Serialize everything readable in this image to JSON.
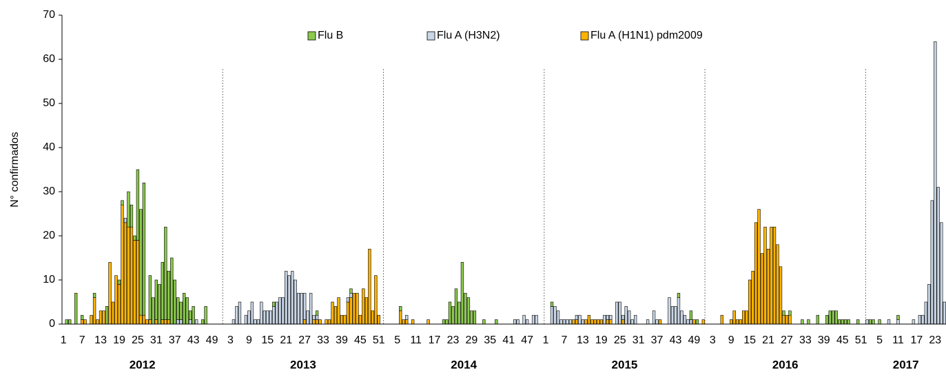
{
  "chart_data": {
    "type": "stacked-bar",
    "y_label": "N° confirmados",
    "ylim": [
      0,
      70
    ],
    "yticks": [
      0,
      10,
      20,
      30,
      40,
      50,
      60,
      70
    ],
    "legend": "top-center",
    "year_labels": [
      "2012",
      "2013",
      "2014",
      "2015",
      "2016",
      "2017"
    ],
    "categories": [
      "1",
      null,
      null,
      null,
      null,
      null,
      "7",
      null,
      null,
      null,
      null,
      null,
      "13",
      null,
      null,
      null,
      null,
      null,
      "19",
      null,
      null,
      null,
      null,
      null,
      "25",
      null,
      null,
      null,
      null,
      null,
      "31",
      null,
      null,
      null,
      null,
      null,
      "37",
      null,
      null,
      null,
      null,
      null,
      "43",
      null,
      null,
      null,
      null,
      null,
      "49",
      null,
      null,
      null,
      null,
      null,
      "3",
      null,
      null,
      null,
      null,
      null,
      "9",
      null,
      null,
      null,
      null,
      null,
      "15",
      null,
      null,
      null,
      null,
      null,
      "21",
      null,
      null,
      null,
      null,
      null,
      "27",
      null,
      null,
      null,
      null,
      null,
      "33",
      null,
      null,
      null,
      null,
      null,
      "39",
      null,
      null,
      null,
      null,
      null,
      "45",
      null,
      null,
      null,
      null,
      null,
      "51",
      null,
      null,
      null,
      null,
      null,
      "5",
      null,
      null,
      null,
      null,
      null,
      "11",
      null,
      null,
      null,
      null,
      null,
      "17",
      null,
      null,
      null,
      null,
      null,
      "23",
      null,
      null,
      null,
      null,
      null,
      "29",
      null,
      null,
      null,
      null,
      null,
      "35",
      null,
      null,
      null,
      null,
      null,
      "41",
      null,
      null,
      null,
      null,
      null,
      "47",
      null,
      null,
      null,
      null,
      null,
      "1",
      null,
      null,
      null,
      null,
      null,
      "7",
      null,
      null,
      null,
      null,
      null,
      "13",
      null,
      null,
      null,
      null,
      null,
      "19",
      null,
      null,
      null,
      null,
      null,
      "25",
      null,
      null,
      null,
      null,
      null,
      "31",
      null,
      null,
      null,
      null,
      null,
      "37",
      null,
      null,
      null,
      null,
      null,
      "43",
      null,
      null,
      null,
      null,
      null,
      "49",
      null,
      null,
      null,
      null,
      null,
      "3",
      null,
      null,
      null,
      null,
      null,
      "9",
      null,
      null,
      null,
      null,
      null,
      "15",
      null,
      null,
      null,
      null,
      null,
      "21",
      null,
      null,
      null,
      null,
      null,
      "27",
      null,
      null,
      null,
      null,
      null,
      "33",
      null,
      null,
      null,
      null,
      null,
      "39",
      null,
      null,
      null,
      null,
      null,
      "45",
      null,
      null,
      null,
      null,
      null,
      "51",
      null,
      null,
      null,
      null,
      null,
      "5",
      null,
      null,
      null,
      null,
      null,
      "11",
      null,
      null,
      null,
      null,
      null,
      "17",
      null,
      null,
      null,
      null,
      null,
      "23",
      null,
      null,
      null
    ],
    "series": [
      {
        "name": "Flu B",
        "color": "#8cc94e",
        "values": [
          0,
          1,
          1,
          0,
          7,
          0,
          1,
          0,
          0,
          0,
          1,
          0,
          0,
          0,
          4,
          0,
          0,
          0,
          1,
          1,
          0,
          8,
          5,
          1,
          16,
          24,
          30,
          0,
          10,
          6,
          9,
          9,
          13,
          21,
          11,
          15,
          10,
          5,
          4,
          7,
          6,
          2,
          4,
          0,
          0,
          1,
          4,
          0,
          0,
          0,
          0,
          0,
          0,
          0,
          0,
          0,
          0,
          0,
          0,
          0,
          0,
          0,
          0,
          0,
          0,
          0,
          0,
          0,
          1,
          0,
          0,
          0,
          0,
          0,
          0,
          0,
          0,
          0,
          0,
          0,
          0,
          0,
          1,
          0,
          0,
          0,
          0,
          0,
          0,
          0,
          0,
          0,
          0,
          1,
          0,
          0,
          0,
          0,
          0,
          0,
          0,
          0,
          0,
          0,
          0,
          0,
          0,
          0,
          0,
          1,
          0,
          0,
          0,
          0,
          0,
          0,
          0,
          0,
          0,
          0,
          0,
          0,
          0,
          1,
          1,
          5,
          4,
          8,
          5,
          14,
          7,
          6,
          3,
          3,
          0,
          0,
          1,
          0,
          0,
          0,
          1,
          0,
          0,
          0,
          0,
          0,
          0,
          0,
          0,
          0,
          0,
          0,
          0,
          0,
          0,
          0,
          0,
          0,
          1,
          0,
          0,
          0,
          0,
          0,
          0,
          0,
          0,
          0,
          0,
          0,
          0,
          0,
          0,
          0,
          0,
          0,
          0,
          0,
          0,
          0,
          0,
          0,
          0,
          0,
          0,
          0,
          0,
          0,
          0,
          0,
          0,
          0,
          0,
          0,
          0,
          0,
          0,
          0,
          0,
          1,
          0,
          0,
          0,
          2,
          0,
          1,
          0,
          0,
          0,
          0,
          0,
          0,
          0,
          0,
          0,
          0,
          0,
          0,
          0,
          0,
          0,
          0,
          0,
          0,
          0,
          0,
          0,
          0,
          0,
          0,
          0,
          0,
          0,
          1,
          0,
          1,
          0,
          0,
          0,
          1,
          0,
          1,
          0,
          0,
          2,
          0,
          0,
          2,
          3,
          3,
          3,
          1,
          1,
          1,
          1,
          0,
          0,
          1,
          0,
          0,
          0,
          1,
          1,
          0,
          1,
          0,
          0,
          0,
          0,
          0,
          1,
          0,
          0,
          0,
          0,
          0,
          0,
          0,
          0,
          0,
          0,
          0,
          0,
          0,
          0,
          0
        ]
      },
      {
        "name": "Flu A (H3N2)",
        "color": "#c9d6e6",
        "values": [
          0,
          0,
          0,
          0,
          0,
          0,
          0,
          0,
          0,
          0,
          0,
          0,
          0,
          0,
          0,
          0,
          0,
          0,
          0,
          0,
          1,
          0,
          0,
          0,
          0,
          0,
          0,
          0,
          0,
          0,
          0,
          0,
          0,
          0,
          0,
          0,
          0,
          1,
          1,
          0,
          0,
          1,
          0,
          1,
          0,
          0,
          0,
          0,
          0,
          0,
          0,
          0,
          0,
          0,
          0,
          1,
          4,
          5,
          0,
          2,
          3,
          5,
          1,
          1,
          5,
          3,
          3,
          3,
          4,
          5,
          6,
          6,
          12,
          11,
          12,
          10,
          7,
          7,
          6,
          3,
          7,
          1,
          1,
          0,
          0,
          0,
          0,
          0,
          0,
          0,
          0,
          0,
          1,
          1,
          0,
          0,
          0,
          0,
          0,
          0,
          0,
          0,
          0,
          0,
          0,
          0,
          0,
          0,
          0,
          0,
          0,
          1,
          0,
          0,
          0,
          0,
          0,
          0,
          0,
          0,
          0,
          0,
          0,
          0,
          0,
          0,
          0,
          0,
          0,
          0,
          0,
          0,
          0,
          0,
          0,
          0,
          0,
          0,
          0,
          0,
          0,
          0,
          0,
          0,
          0,
          0,
          1,
          1,
          0,
          2,
          1,
          0,
          2,
          2,
          0,
          0,
          0,
          0,
          4,
          4,
          3,
          1,
          1,
          1,
          1,
          0,
          1,
          2,
          1,
          0,
          0,
          0,
          0,
          0,
          0,
          2,
          1,
          1,
          0,
          5,
          5,
          1,
          4,
          3,
          1,
          2,
          0,
          0,
          0,
          1,
          0,
          3,
          1,
          0,
          0,
          0,
          6,
          4,
          4,
          6,
          3,
          2,
          1,
          1,
          0,
          0,
          0,
          0,
          0,
          0,
          0,
          0,
          0,
          0,
          0,
          0,
          0,
          0,
          0,
          0,
          0,
          0,
          0,
          0,
          0,
          0,
          0,
          0,
          0,
          0,
          0,
          0,
          0,
          0,
          0,
          0,
          0,
          0,
          0,
          0,
          0,
          0,
          0,
          0,
          0,
          0,
          0,
          0,
          0,
          0,
          0,
          0,
          0,
          0,
          0,
          0,
          0,
          0,
          0,
          0,
          1,
          0,
          0,
          0,
          0,
          0,
          0,
          1,
          0,
          0,
          1,
          0,
          0,
          0,
          0,
          1,
          0,
          2,
          2,
          5,
          9,
          28,
          64,
          31,
          23,
          5
        ]
      },
      {
        "name": "Flu A (H1N1) pdm2009",
        "color": "#ffb300",
        "values": [
          0,
          0,
          0,
          0,
          0,
          0,
          1,
          1,
          0,
          2,
          6,
          1,
          3,
          3,
          0,
          14,
          5,
          11,
          9,
          27,
          23,
          22,
          22,
          19,
          19,
          2,
          2,
          1,
          1,
          0,
          1,
          0,
          1,
          1,
          1,
          0,
          0,
          0,
          0,
          0,
          0,
          0,
          0,
          0,
          0,
          0,
          0,
          0,
          0,
          0,
          0,
          0,
          0,
          0,
          0,
          0,
          0,
          0,
          0,
          0,
          0,
          0,
          0,
          0,
          0,
          0,
          0,
          0,
          0,
          0,
          0,
          0,
          0,
          0,
          0,
          0,
          0,
          0,
          1,
          0,
          0,
          1,
          1,
          1,
          0,
          1,
          1,
          5,
          4,
          6,
          2,
          2,
          5,
          6,
          7,
          7,
          2,
          8,
          6,
          17,
          3,
          11,
          2,
          0,
          0,
          0,
          0,
          0,
          0,
          3,
          1,
          1,
          0,
          1,
          0,
          0,
          0,
          0,
          1,
          0,
          0,
          0,
          0,
          0,
          0,
          0,
          0,
          0,
          0,
          0,
          0,
          0,
          0,
          0,
          0,
          0,
          0,
          0,
          0,
          0,
          0,
          0,
          0,
          0,
          0,
          0,
          0,
          0,
          0,
          0,
          0,
          0,
          0,
          0,
          0,
          0,
          0,
          0,
          0,
          0,
          0,
          0,
          0,
          0,
          0,
          1,
          1,
          0,
          0,
          1,
          2,
          1,
          1,
          1,
          1,
          0,
          1,
          1,
          0,
          0,
          0,
          1,
          0,
          0,
          0,
          0,
          0,
          0,
          0,
          0,
          0,
          0,
          0,
          1,
          0,
          0,
          0,
          0,
          0,
          0,
          0,
          0,
          0,
          0,
          1,
          0,
          0,
          1,
          0,
          0,
          0,
          0,
          0,
          2,
          0,
          0,
          1,
          3,
          1,
          1,
          3,
          3,
          10,
          12,
          23,
          26,
          16,
          22,
          17,
          22,
          22,
          18,
          13,
          2,
          2,
          2,
          0,
          0,
          0,
          0,
          0,
          0,
          0,
          0,
          0,
          0,
          0,
          0,
          0,
          0,
          0,
          0,
          0,
          0,
          0,
          0,
          0,
          0,
          0,
          0,
          0,
          0,
          0,
          0,
          0,
          0,
          0,
          0,
          0,
          0,
          0,
          0,
          0,
          0,
          0,
          0,
          0,
          0,
          0,
          0,
          0,
          0,
          0,
          0,
          0,
          0
        ]
      }
    ]
  }
}
